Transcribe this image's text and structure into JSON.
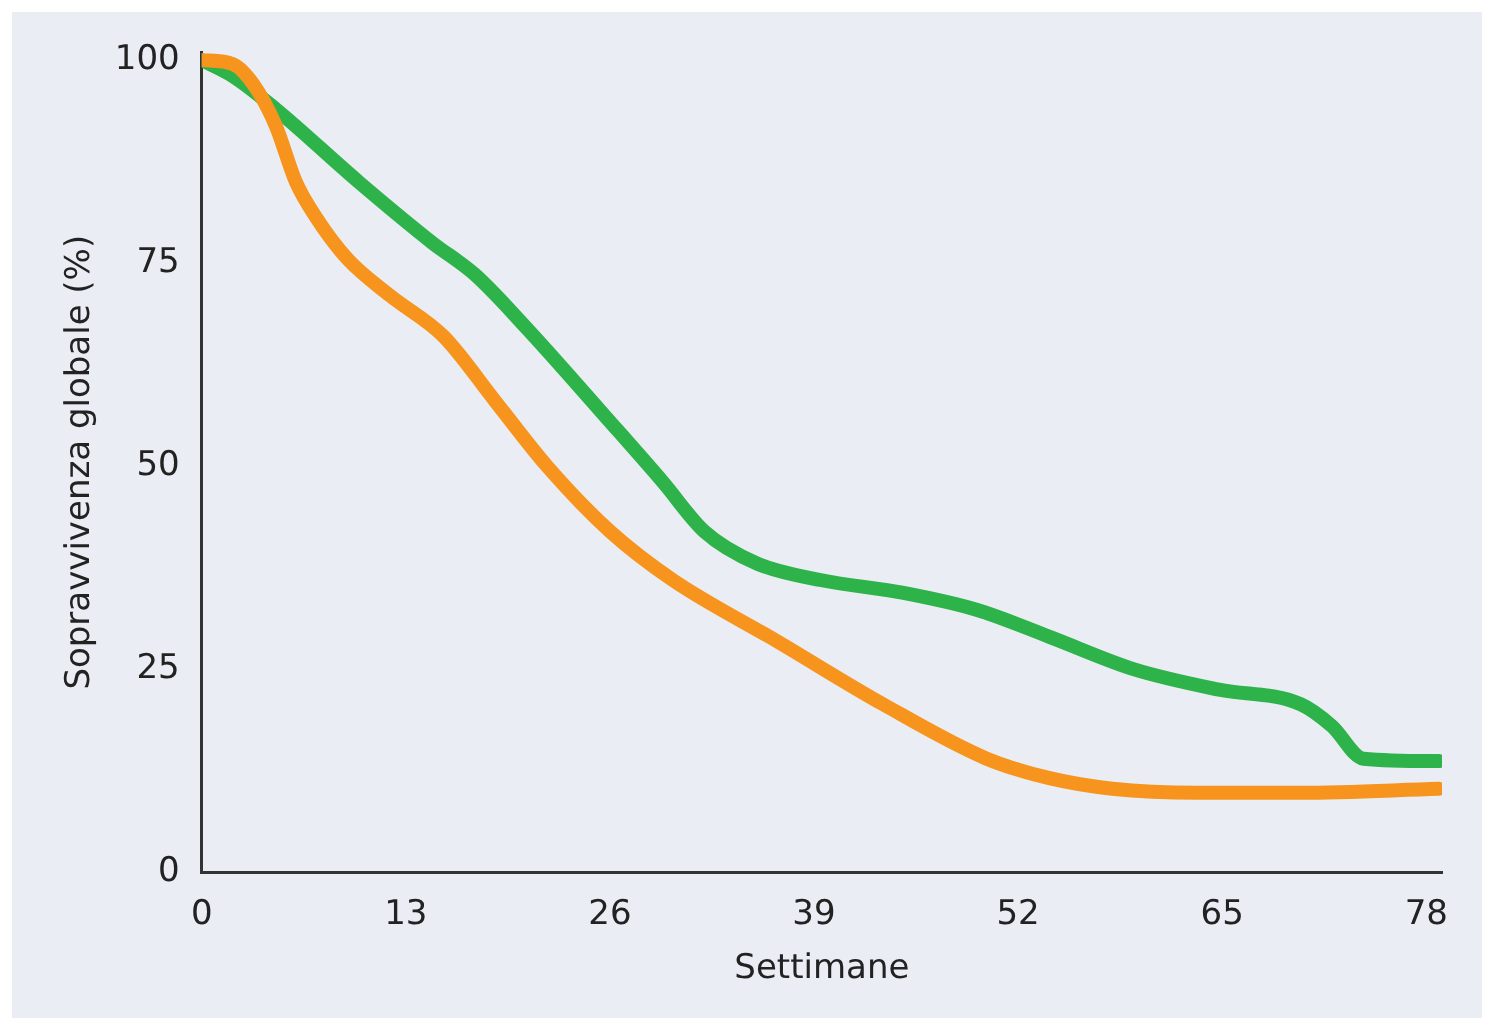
{
  "chart_data": {
    "type": "line",
    "xlabel": "Settimane",
    "ylabel": "Sopravvivenza globale (%)",
    "xlim": [
      0,
      79
    ],
    "ylim": [
      0,
      101
    ],
    "xticks": [
      0,
      13,
      26,
      39,
      52,
      65,
      78
    ],
    "yticks": [
      0,
      25,
      50,
      75,
      100
    ],
    "grid": false,
    "legend": false,
    "marker": "none",
    "line_style": "solid",
    "series": [
      {
        "color": "#f7941d",
        "x": [
          0,
          2,
          3.3,
          4.7,
          6,
          7.3,
          9.3,
          12,
          15.4,
          18.7,
          22,
          26,
          30,
          36.7,
          43.4,
          50,
          54,
          58,
          63.4,
          70,
          78.8
        ],
        "values": [
          100,
          99.5,
          97,
          92,
          85,
          80.6,
          75.5,
          71,
          66,
          58,
          50,
          42,
          36,
          28.4,
          20.7,
          14,
          11.6,
          10.3,
          9.8,
          9.8,
          10.3
        ]
      },
      {
        "color": "#2db34a",
        "x": [
          0,
          2,
          4.7,
          10,
          14.7,
          17.4,
          20.7,
          26,
          29.4,
          32,
          35.4,
          39.4,
          44.7,
          49.4,
          54,
          59.4,
          64.8,
          70,
          72,
          74,
          78.8
        ],
        "values": [
          100,
          98,
          94,
          85,
          77.5,
          73.6,
          67,
          55.5,
          48,
          42,
          38,
          36,
          34.4,
          32.3,
          29,
          25,
          22.5,
          20.7,
          18,
          14,
          13.7
        ]
      }
    ]
  }
}
